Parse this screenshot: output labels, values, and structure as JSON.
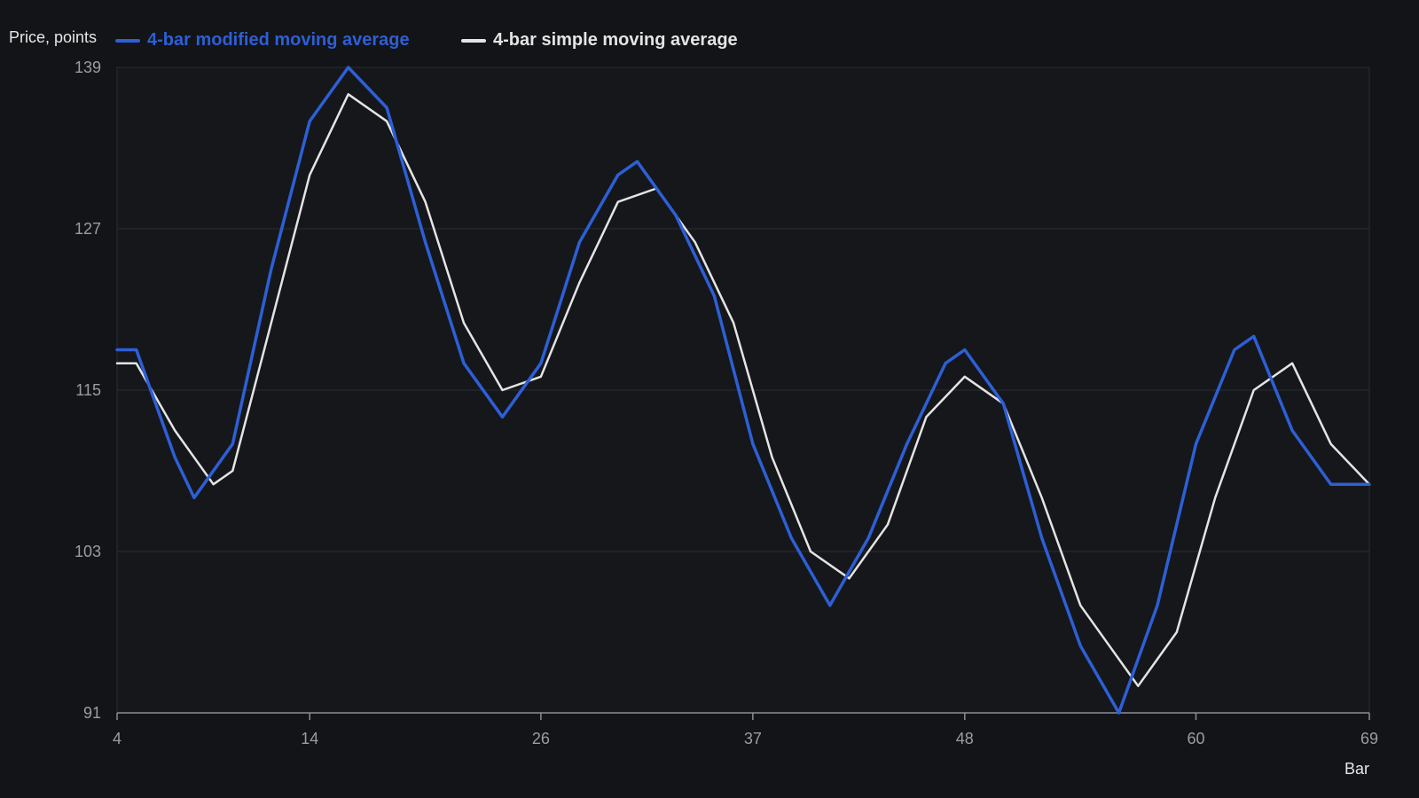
{
  "chart_data": {
    "type": "line",
    "ylabel": "Price, points",
    "xlabel": "Bar",
    "xlim": [
      4,
      69
    ],
    "ylim": [
      91,
      139
    ],
    "x_ticks": [
      4,
      14,
      26,
      37,
      48,
      60,
      69
    ],
    "y_ticks": [
      139,
      127,
      115,
      103,
      91
    ],
    "grid": true,
    "legend_position": "top-left",
    "series": [
      {
        "name": "4-bar modified moving average",
        "color": "#2d5fd6",
        "x": [
          4,
          5,
          7,
          8,
          10,
          12,
          14,
          16,
          18,
          20,
          22,
          24,
          26,
          28,
          30,
          31,
          33,
          35,
          37,
          39,
          41,
          43,
          45,
          47,
          48,
          50,
          52,
          54,
          56,
          58,
          60,
          62,
          63,
          65,
          67,
          69
        ],
        "y": [
          118,
          118,
          110,
          107,
          111,
          124,
          135,
          139,
          136,
          126,
          117,
          113,
          117,
          126,
          131,
          132,
          128,
          122,
          111,
          104,
          99,
          104,
          111,
          117,
          118,
          114,
          104,
          96,
          91,
          99,
          111,
          118,
          119,
          112,
          108,
          108
        ]
      },
      {
        "name": "4-bar simple moving average",
        "color": "#e4e4e4",
        "x": [
          4,
          5,
          7,
          9,
          10,
          12,
          14,
          16,
          18,
          20,
          22,
          24,
          26,
          28,
          30,
          32,
          34,
          36,
          38,
          40,
          42,
          44,
          46,
          48,
          50,
          52,
          54,
          57,
          59,
          61,
          63,
          65,
          67,
          69
        ],
        "y": [
          117,
          117,
          112,
          108,
          109,
          120,
          131,
          137,
          135,
          129,
          120,
          115,
          116,
          123,
          129,
          130,
          126,
          120,
          110,
          103,
          101,
          105,
          113,
          116,
          114,
          107,
          99,
          93,
          97,
          107,
          115,
          117,
          111,
          108
        ]
      }
    ]
  }
}
